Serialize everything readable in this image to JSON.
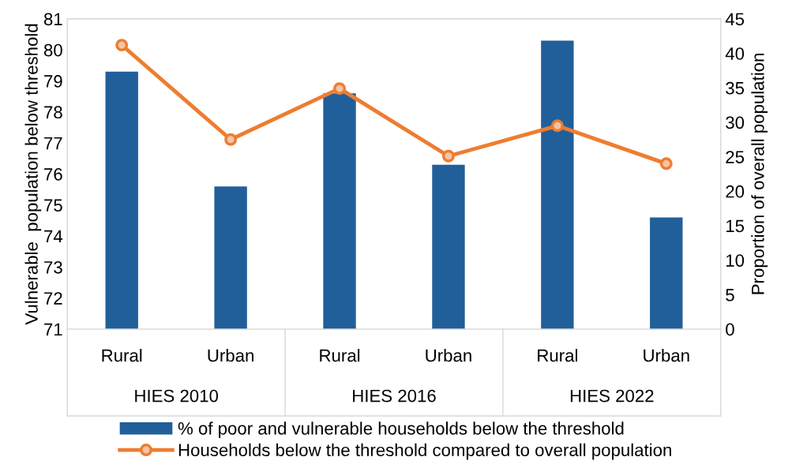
{
  "chart_data": {
    "type": "bar",
    "categories": [
      "Rural",
      "Urban",
      "Rural",
      "Urban",
      "Rural",
      "Urban"
    ],
    "annotations": [
      "HIES 2010",
      "HIES 2016",
      "HIES 2022"
    ],
    "ylabel": "Vulnerable  population below threshold",
    "y2label": "Proportion of overall population",
    "series": [
      {
        "name": "% of poor and vulnerable households below the threshold",
        "color": "#215f9a",
        "values": [
          79.3,
          75.6,
          78.6,
          76.3,
          80.3,
          74.6
        ]
      },
      {
        "name": "Households below the threshold compared to overall population",
        "type": "line",
        "axis": "y2",
        "color": "#ed7d31",
        "marker": "circle",
        "values": [
          41.2,
          27.5,
          34.9,
          25.1,
          29.5,
          24.0
        ]
      }
    ],
    "ylim": [
      71,
      81
    ],
    "yticks": [
      71,
      72,
      73,
      74,
      75,
      76,
      77,
      78,
      79,
      80,
      81
    ],
    "y2lim": [
      0,
      45
    ],
    "y2ticks": [
      0,
      5,
      10,
      15,
      20,
      25,
      30,
      35,
      40,
      45
    ],
    "grid": false,
    "legend": "bottom"
  }
}
